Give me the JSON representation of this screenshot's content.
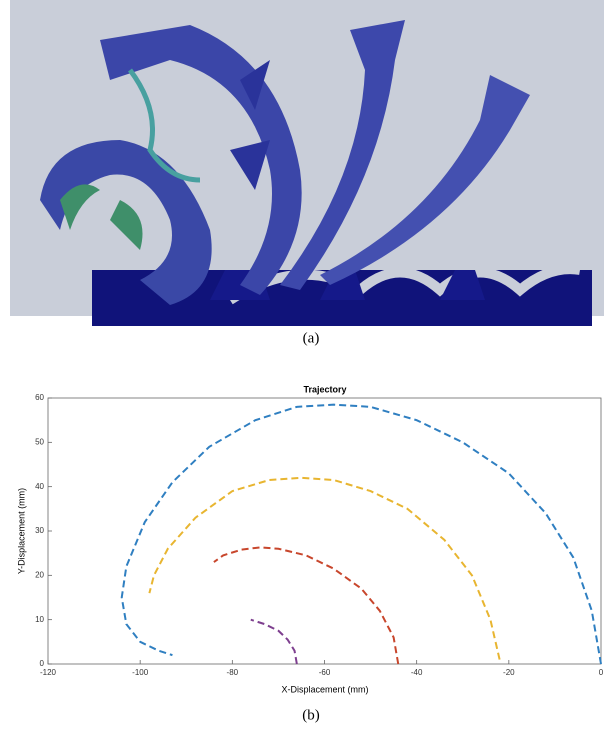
{
  "captions": [
    "(a)",
    "(b)"
  ],
  "chart_data": {
    "type": "line",
    "title": "Trajectory",
    "x_label": "X-Displacement (mm)",
    "y_label": "Y-Displacement (mm)",
    "series": [
      {
        "color": "#2f7fc1",
        "x": [
          0,
          -2,
          -6,
          -12,
          -20,
          -30,
          -40,
          -50,
          -58,
          -66,
          -75,
          -85,
          -93,
          -99,
          -103,
          -104,
          -103,
          -100,
          -96,
          -93
        ],
        "values": [
          0,
          12,
          24,
          34,
          43,
          50,
          55,
          58,
          58.5,
          58,
          55,
          49,
          41,
          32,
          22,
          15,
          9,
          5,
          3,
          2
        ]
      },
      {
        "color": "#e8b530",
        "x": [
          -22,
          -24,
          -28,
          -34,
          -42,
          -50,
          -58,
          -65,
          -72,
          -80,
          -88,
          -94,
          -97,
          -98
        ],
        "values": [
          1,
          10,
          20,
          28,
          35,
          39,
          41.5,
          42,
          41.5,
          39,
          33,
          26,
          20,
          16
        ]
      },
      {
        "color": "#c8462c",
        "x": [
          -44,
          -45,
          -48,
          -52,
          -58,
          -64,
          -70,
          -74,
          -78,
          -82,
          -84
        ],
        "values": [
          0,
          6,
          12,
          17,
          21.5,
          24.5,
          26,
          26.3,
          25.8,
          24.5,
          23
        ]
      },
      {
        "color": "#7e3f8f",
        "x": [
          -66,
          -66.5,
          -68,
          -70,
          -73,
          -76
        ],
        "values": [
          0,
          3,
          5.5,
          7.5,
          9,
          10
        ]
      }
    ],
    "xlim": [
      -120,
      0
    ],
    "xticks": [
      -120,
      -100,
      -80,
      -60,
      -40,
      -20,
      0
    ],
    "ylim": [
      0,
      60
    ],
    "yticks": [
      0,
      10,
      20,
      30,
      40,
      50,
      60
    ],
    "grid": false,
    "dashed": true
  }
}
